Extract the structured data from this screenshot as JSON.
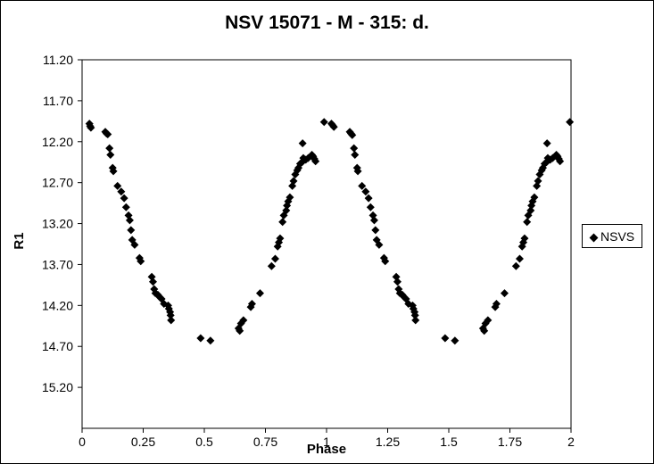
{
  "chart_data": {
    "type": "scatter",
    "title": "NSV 15071 - M - 315: d.",
    "xlabel": "Phase",
    "ylabel": "R1",
    "xlim": [
      0,
      2
    ],
    "ylim": [
      11.2,
      15.7
    ],
    "y_inverted": true,
    "x_ticks": [
      "0",
      "0.25",
      "0.5",
      "0.75",
      "1",
      "1.25",
      "1.5",
      "1.75",
      "2"
    ],
    "x_tick_values": [
      0,
      0.25,
      0.5,
      0.75,
      1,
      1.25,
      1.5,
      1.75,
      2
    ],
    "y_ticks": [
      "11.20",
      "11.70",
      "12.20",
      "12.70",
      "13.20",
      "13.70",
      "14.20",
      "14.70",
      "15.20"
    ],
    "y_tick_values": [
      11.2,
      11.7,
      12.2,
      12.7,
      13.2,
      13.7,
      14.2,
      14.7,
      15.2
    ],
    "grid": false,
    "legend_position": "right",
    "series": [
      {
        "name": "NSVS",
        "color": "#000000",
        "marker": "diamond",
        "points": [
          [
            0.03,
            11.98
          ],
          [
            0.033,
            12.01
          ],
          [
            0.036,
            12.03
          ],
          [
            0.095,
            12.08
          ],
          [
            0.1,
            12.1
          ],
          [
            0.105,
            12.11
          ],
          [
            0.112,
            12.28
          ],
          [
            0.116,
            12.36
          ],
          [
            0.125,
            12.52
          ],
          [
            0.128,
            12.56
          ],
          [
            0.145,
            12.74
          ],
          [
            0.16,
            12.81
          ],
          [
            0.172,
            12.89
          ],
          [
            0.18,
            13.0
          ],
          [
            0.19,
            13.1
          ],
          [
            0.195,
            13.16
          ],
          [
            0.2,
            13.28
          ],
          [
            0.205,
            13.4
          ],
          [
            0.215,
            13.46
          ],
          [
            0.235,
            13.62
          ],
          [
            0.24,
            13.66
          ],
          [
            0.285,
            13.85
          ],
          [
            0.29,
            13.91
          ],
          [
            0.295,
            14.0
          ],
          [
            0.3,
            14.05
          ],
          [
            0.31,
            14.07
          ],
          [
            0.318,
            14.1
          ],
          [
            0.325,
            14.12
          ],
          [
            0.335,
            14.18
          ],
          [
            0.352,
            14.2
          ],
          [
            0.355,
            14.24
          ],
          [
            0.36,
            14.28
          ],
          [
            0.362,
            14.32
          ],
          [
            0.364,
            14.38
          ],
          [
            0.485,
            14.6
          ],
          [
            0.525,
            14.63
          ],
          [
            0.64,
            14.48
          ],
          [
            0.645,
            14.51
          ],
          [
            0.65,
            14.42
          ],
          [
            0.66,
            14.38
          ],
          [
            0.69,
            14.22
          ],
          [
            0.695,
            14.18
          ],
          [
            0.728,
            14.05
          ],
          [
            0.775,
            13.72
          ],
          [
            0.79,
            13.63
          ],
          [
            0.8,
            13.48
          ],
          [
            0.805,
            13.43
          ],
          [
            0.81,
            13.38
          ],
          [
            0.82,
            13.18
          ],
          [
            0.825,
            13.1
          ],
          [
            0.835,
            13.04
          ],
          [
            0.838,
            12.98
          ],
          [
            0.843,
            12.93
          ],
          [
            0.85,
            12.88
          ],
          [
            0.86,
            12.74
          ],
          [
            0.865,
            12.68
          ],
          [
            0.872,
            12.6
          ],
          [
            0.88,
            12.55
          ],
          [
            0.885,
            12.52
          ],
          [
            0.892,
            12.47
          ],
          [
            0.9,
            12.45
          ],
          [
            0.902,
            12.22
          ],
          [
            0.905,
            12.4
          ],
          [
            0.915,
            12.42
          ],
          [
            0.925,
            12.4
          ],
          [
            0.94,
            12.36
          ],
          [
            0.945,
            12.38
          ],
          [
            0.95,
            12.41
          ],
          [
            0.955,
            12.44
          ],
          [
            0.99,
            11.96
          ],
          [
            1.02,
            11.98
          ],
          [
            1.025,
            12.0
          ],
          [
            1.03,
            12.02
          ],
          [
            1.095,
            12.08
          ],
          [
            1.1,
            12.1
          ],
          [
            1.105,
            12.12
          ],
          [
            1.112,
            12.28
          ],
          [
            1.116,
            12.36
          ],
          [
            1.125,
            12.52
          ],
          [
            1.128,
            12.56
          ],
          [
            1.145,
            12.74
          ],
          [
            1.16,
            12.81
          ],
          [
            1.172,
            12.89
          ],
          [
            1.18,
            13.0
          ],
          [
            1.19,
            13.1
          ],
          [
            1.195,
            13.16
          ],
          [
            1.2,
            13.28
          ],
          [
            1.205,
            13.4
          ],
          [
            1.215,
            13.46
          ],
          [
            1.235,
            13.62
          ],
          [
            1.24,
            13.66
          ],
          [
            1.285,
            13.85
          ],
          [
            1.29,
            13.91
          ],
          [
            1.295,
            14.0
          ],
          [
            1.3,
            14.05
          ],
          [
            1.31,
            14.07
          ],
          [
            1.318,
            14.1
          ],
          [
            1.325,
            14.12
          ],
          [
            1.335,
            14.18
          ],
          [
            1.352,
            14.2
          ],
          [
            1.355,
            14.24
          ],
          [
            1.36,
            14.28
          ],
          [
            1.362,
            14.32
          ],
          [
            1.364,
            14.38
          ],
          [
            1.485,
            14.6
          ],
          [
            1.525,
            14.63
          ],
          [
            1.64,
            14.48
          ],
          [
            1.645,
            14.51
          ],
          [
            1.65,
            14.42
          ],
          [
            1.66,
            14.38
          ],
          [
            1.69,
            14.22
          ],
          [
            1.695,
            14.18
          ],
          [
            1.728,
            14.05
          ],
          [
            1.775,
            13.72
          ],
          [
            1.79,
            13.63
          ],
          [
            1.8,
            13.48
          ],
          [
            1.805,
            13.43
          ],
          [
            1.81,
            13.38
          ],
          [
            1.82,
            13.18
          ],
          [
            1.825,
            13.1
          ],
          [
            1.835,
            13.04
          ],
          [
            1.838,
            12.98
          ],
          [
            1.843,
            12.93
          ],
          [
            1.85,
            12.88
          ],
          [
            1.86,
            12.74
          ],
          [
            1.865,
            12.68
          ],
          [
            1.872,
            12.6
          ],
          [
            1.88,
            12.55
          ],
          [
            1.885,
            12.52
          ],
          [
            1.892,
            12.47
          ],
          [
            1.9,
            12.45
          ],
          [
            1.902,
            12.22
          ],
          [
            1.905,
            12.4
          ],
          [
            1.915,
            12.42
          ],
          [
            1.925,
            12.4
          ],
          [
            1.94,
            12.36
          ],
          [
            1.945,
            12.38
          ],
          [
            1.95,
            12.41
          ],
          [
            1.955,
            12.44
          ],
          [
            1.995,
            11.96
          ]
        ]
      }
    ]
  }
}
